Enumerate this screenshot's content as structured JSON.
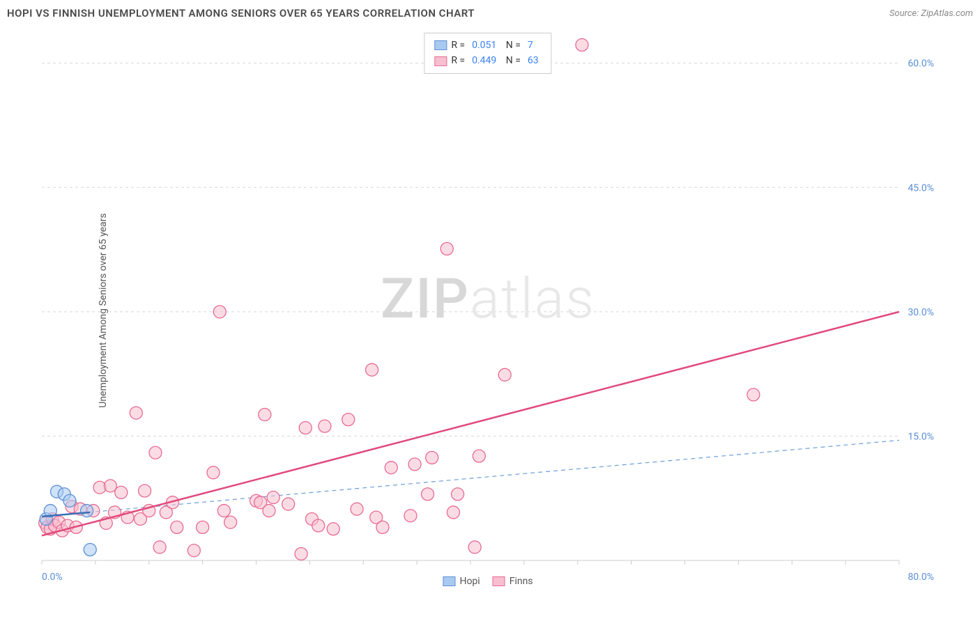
{
  "title": "HOPI VS FINNISH UNEMPLOYMENT AMONG SENIORS OVER 65 YEARS CORRELATION CHART",
  "source": "Source: ZipAtlas.com",
  "ylabel": "Unemployment Among Seniors over 65 years",
  "watermark_a": "ZIP",
  "watermark_b": "atlas",
  "chart": {
    "type": "scatter",
    "background_color": "#ffffff",
    "grid_color": "#d8d8d8",
    "axis_color": "#cccccc",
    "tick_label_color": "#5a8fd6",
    "tick_fontsize": 14,
    "xlim": [
      0,
      80
    ],
    "ylim": [
      0,
      63
    ],
    "x_tick_start": "0.0%",
    "x_tick_end": "80.0%",
    "y_ticks": [
      {
        "v": 15,
        "label": "15.0%"
      },
      {
        "v": 30,
        "label": "30.0%"
      },
      {
        "v": 45,
        "label": "45.0%"
      },
      {
        "v": 60,
        "label": "60.0%"
      }
    ],
    "x_minor_ticks": [
      0,
      5,
      10,
      15,
      20,
      25,
      30,
      35,
      40,
      45,
      50,
      55,
      60,
      65,
      70,
      75,
      80
    ],
    "marker_radius": 9,
    "marker_stroke_width": 1.3,
    "series": [
      {
        "name": "Hopi",
        "fill": "#a9caf0",
        "stroke": "#5a8fd6",
        "fill_opacity": 0.55,
        "R": "0.051",
        "N": "7",
        "trend": {
          "x1": 0,
          "y1": 5.3,
          "x2": 4.5,
          "y2": 5.8,
          "color": "#3b6fb5",
          "width": 2.5,
          "dash": "none"
        },
        "trend_ext": {
          "x1": 0,
          "y1": 5.3,
          "x2": 80,
          "y2": 14.5,
          "color": "#6a9edb",
          "width": 1.2,
          "dash": "6,5"
        },
        "points": [
          {
            "x": 0.4,
            "y": 5.0
          },
          {
            "x": 0.8,
            "y": 6.0
          },
          {
            "x": 1.4,
            "y": 8.3
          },
          {
            "x": 2.1,
            "y": 8.0
          },
          {
            "x": 2.6,
            "y": 7.2
          },
          {
            "x": 4.2,
            "y": 6.0
          },
          {
            "x": 4.5,
            "y": 1.3
          }
        ]
      },
      {
        "name": "Finns",
        "fill": "#f7bfd0",
        "stroke": "#e86a93",
        "fill_opacity": 0.55,
        "R": "0.449",
        "N": "63",
        "trend": {
          "x1": 0,
          "y1": 3.0,
          "x2": 80,
          "y2": 30.0,
          "color": "#e14a7b",
          "width": 2.5,
          "dash": "none"
        },
        "points": [
          {
            "x": 0.3,
            "y": 4.5
          },
          {
            "x": 0.5,
            "y": 4.0
          },
          {
            "x": 0.8,
            "y": 3.8
          },
          {
            "x": 1.0,
            "y": 5.0
          },
          {
            "x": 1.2,
            "y": 4.2
          },
          {
            "x": 1.6,
            "y": 4.6
          },
          {
            "x": 1.9,
            "y": 3.6
          },
          {
            "x": 2.4,
            "y": 4.2
          },
          {
            "x": 2.8,
            "y": 6.5
          },
          {
            "x": 3.2,
            "y": 4.0
          },
          {
            "x": 3.6,
            "y": 6.2
          },
          {
            "x": 4.8,
            "y": 6.0
          },
          {
            "x": 5.4,
            "y": 8.8
          },
          {
            "x": 6.0,
            "y": 4.5
          },
          {
            "x": 6.4,
            "y": 9.0
          },
          {
            "x": 6.8,
            "y": 5.8
          },
          {
            "x": 7.4,
            "y": 8.2
          },
          {
            "x": 8.0,
            "y": 5.2
          },
          {
            "x": 8.8,
            "y": 17.8
          },
          {
            "x": 9.2,
            "y": 5.0
          },
          {
            "x": 9.6,
            "y": 8.4
          },
          {
            "x": 10.0,
            "y": 6.0
          },
          {
            "x": 10.6,
            "y": 13.0
          },
          {
            "x": 11.0,
            "y": 1.6
          },
          {
            "x": 11.6,
            "y": 5.8
          },
          {
            "x": 12.2,
            "y": 7.0
          },
          {
            "x": 12.6,
            "y": 4.0
          },
          {
            "x": 14.2,
            "y": 1.2
          },
          {
            "x": 15.0,
            "y": 4.0
          },
          {
            "x": 16.0,
            "y": 10.6
          },
          {
            "x": 16.6,
            "y": 30.0
          },
          {
            "x": 17.0,
            "y": 6.0
          },
          {
            "x": 17.6,
            "y": 4.6
          },
          {
            "x": 20.0,
            "y": 7.2
          },
          {
            "x": 20.4,
            "y": 7.0
          },
          {
            "x": 20.8,
            "y": 17.6
          },
          {
            "x": 21.2,
            "y": 6.0
          },
          {
            "x": 21.6,
            "y": 7.6
          },
          {
            "x": 23.0,
            "y": 6.8
          },
          {
            "x": 24.2,
            "y": 0.8
          },
          {
            "x": 24.6,
            "y": 16.0
          },
          {
            "x": 25.2,
            "y": 5.0
          },
          {
            "x": 25.8,
            "y": 4.2
          },
          {
            "x": 26.4,
            "y": 16.2
          },
          {
            "x": 27.2,
            "y": 3.8
          },
          {
            "x": 28.6,
            "y": 17.0
          },
          {
            "x": 29.4,
            "y": 6.2
          },
          {
            "x": 30.8,
            "y": 23.0
          },
          {
            "x": 31.2,
            "y": 5.2
          },
          {
            "x": 31.8,
            "y": 4.0
          },
          {
            "x": 32.6,
            "y": 11.2
          },
          {
            "x": 34.4,
            "y": 5.4
          },
          {
            "x": 34.8,
            "y": 11.6
          },
          {
            "x": 36.0,
            "y": 8.0
          },
          {
            "x": 36.4,
            "y": 12.4
          },
          {
            "x": 37.8,
            "y": 37.6
          },
          {
            "x": 38.4,
            "y": 5.8
          },
          {
            "x": 40.4,
            "y": 1.6
          },
          {
            "x": 40.8,
            "y": 12.6
          },
          {
            "x": 43.2,
            "y": 22.4
          },
          {
            "x": 50.4,
            "y": 62.2
          },
          {
            "x": 66.4,
            "y": 20.0
          },
          {
            "x": 38.8,
            "y": 8.0
          }
        ]
      }
    ],
    "legend_bottom": [
      {
        "label": "Hopi",
        "fill": "#a9caf0",
        "stroke": "#5a8fd6"
      },
      {
        "label": "Finns",
        "fill": "#f7bfd0",
        "stroke": "#e86a93"
      }
    ]
  }
}
